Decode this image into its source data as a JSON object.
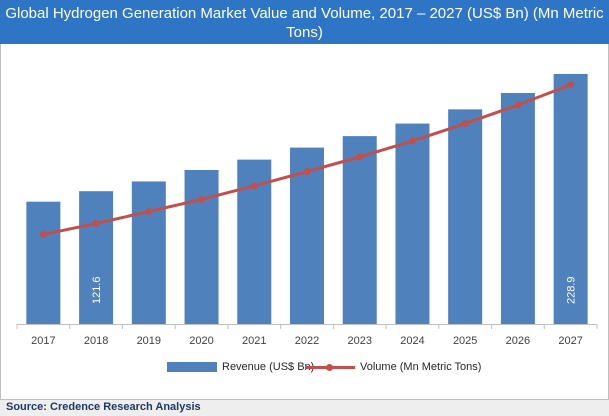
{
  "chart_data": {
    "type": "bar",
    "title": "Global Hydrogen Generation Market Value and Volume, 2017 – 2027 (US$ Bn) (Mn Metric Tons)",
    "categories": [
      "2017",
      "2018",
      "2019",
      "2020",
      "2021",
      "2022",
      "2023",
      "2024",
      "2025",
      "2026",
      "2027"
    ],
    "ylim": [
      0,
      260
    ],
    "series": [
      {
        "name": "Revenue (US$ Bn)",
        "type": "bar",
        "color": "#4f81bd",
        "values": [
          112.0,
          121.6,
          130.5,
          141.0,
          150.5,
          161.5,
          172.0,
          183.5,
          196.5,
          211.5,
          228.9
        ]
      },
      {
        "name": "Volume (Mn Metric Tons)",
        "type": "line",
        "color": "#c0504d",
        "values": [
          82.0,
          92.0,
          103.0,
          114.0,
          126.5,
          139.5,
          153.0,
          167.5,
          183.5,
          200.5,
          219.0
        ]
      }
    ],
    "data_labels": [
      {
        "category": "2018",
        "text": "121.6"
      },
      {
        "category": "2027",
        "text": "228.9"
      }
    ],
    "grid": false,
    "legend_position": "bottom"
  },
  "source": "Source: Credence Research Analysis"
}
